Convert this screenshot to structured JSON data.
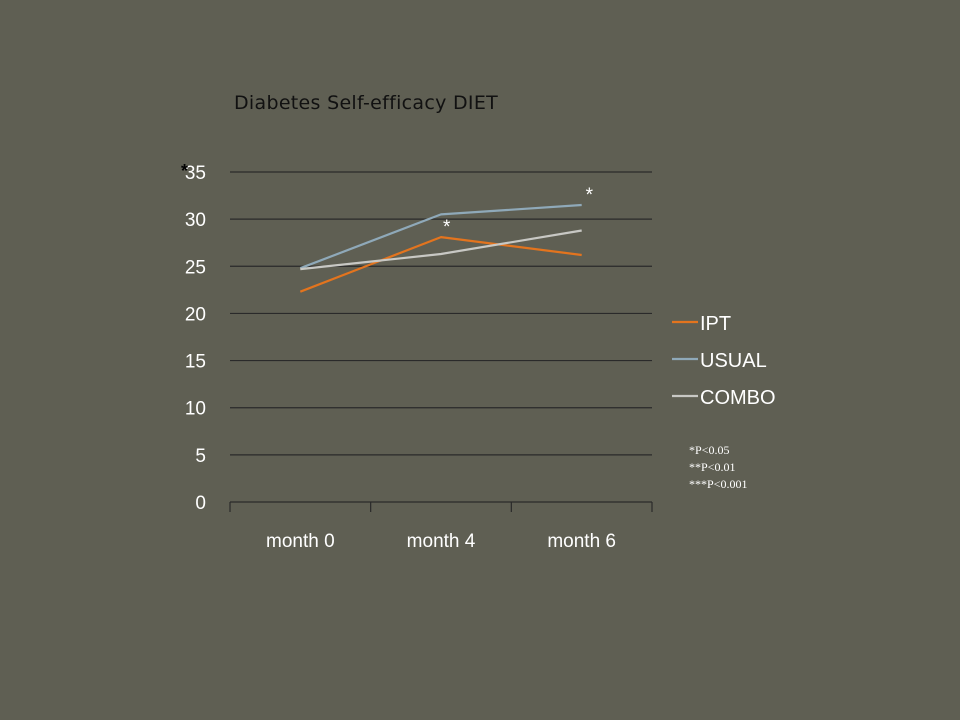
{
  "colors": {
    "background": "#5f5f53",
    "gridline": "#2a2a2a",
    "text": "#ffffff",
    "title_text": "#111111",
    "asterisk": "#ffffff",
    "title_asterisk": "#000000"
  },
  "chart_data": {
    "type": "line",
    "title": "Diabetes Self-efficacy DIET",
    "title_marker": "*",
    "xlabel": "",
    "ylabel": "",
    "categories": [
      "month 0",
      "month 4",
      "month 6"
    ],
    "ylim": [
      0,
      35
    ],
    "yticks": [
      0,
      5,
      10,
      15,
      20,
      25,
      30,
      35
    ],
    "grid": true,
    "legend_position": "right",
    "series": [
      {
        "name": "IPT",
        "color": "#e3741e",
        "values": [
          22.3,
          28.1,
          26.2
        ]
      },
      {
        "name": "USUAL",
        "color": "#8fa9b9",
        "values": [
          24.8,
          30.5,
          31.5
        ]
      },
      {
        "name": "COMBO",
        "color": "#c8c8c4",
        "values": [
          24.7,
          26.3,
          28.8
        ]
      }
    ],
    "annotations": [
      {
        "text": "*",
        "category": "month 4",
        "near_series": "IPT"
      },
      {
        "text": "*",
        "category": "month 6",
        "near_series": "USUAL"
      }
    ]
  },
  "significance_notes": [
    "*P<0.05",
    "**P<0.01",
    "***P<0.001"
  ]
}
